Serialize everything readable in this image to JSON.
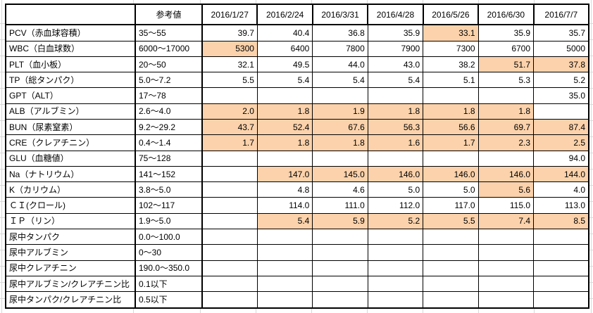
{
  "sheet": {
    "header": {
      "corner": "",
      "reference": "参考値",
      "dates": [
        "2016/1/27",
        "2016/2/24",
        "2016/3/31",
        "2016/4/28",
        "2016/5/26",
        "2016/6/30",
        "2016/7/7"
      ]
    },
    "rows": [
      {
        "label": "PCV（赤血球容積）",
        "ref": "35〜55",
        "values": [
          "39.7",
          "40.4",
          "36.8",
          "35.9",
          "33.1",
          "35.9",
          "35.7"
        ],
        "highlight": [
          0,
          0,
          0,
          0,
          1,
          0,
          0
        ]
      },
      {
        "label": "WBC（白血球数）",
        "ref": "6000〜17000",
        "values": [
          "5300",
          "6400",
          "7800",
          "7900",
          "7300",
          "6700",
          "5000"
        ],
        "highlight": [
          1,
          0,
          0,
          0,
          0,
          0,
          0
        ]
      },
      {
        "label": "PLT（血小板）",
        "ref": "20〜50",
        "values": [
          "32.1",
          "49.5",
          "44.0",
          "43.0",
          "38.2",
          "51.7",
          "37.8"
        ],
        "highlight": [
          0,
          0,
          0,
          0,
          0,
          1,
          1
        ]
      },
      {
        "label": "TP（総タンパク）",
        "ref": "5.0〜7.2",
        "values": [
          "5.5",
          "5.4",
          "5.4",
          "5.4",
          "5.1",
          "5.3",
          "5.2"
        ],
        "highlight": [
          0,
          0,
          0,
          0,
          0,
          0,
          0
        ]
      },
      {
        "label": "GPT（ALT）",
        "ref": "17〜78",
        "values": [
          "",
          "",
          "",
          "",
          "",
          "",
          "35.0"
        ],
        "highlight": [
          0,
          0,
          0,
          0,
          0,
          0,
          0
        ]
      },
      {
        "label": "ALB（アルブミン）",
        "ref": "2.6〜4.0",
        "values": [
          "2.0",
          "1.8",
          "1.9",
          "1.8",
          "1.8",
          "1.8",
          ""
        ],
        "highlight": [
          1,
          1,
          1,
          1,
          1,
          1,
          0
        ]
      },
      {
        "label": "BUN（尿素窒素）",
        "ref": "9.2〜29.2",
        "values": [
          "43.7",
          "52.4",
          "67.6",
          "56.3",
          "56.6",
          "69.7",
          "87.4"
        ],
        "highlight": [
          1,
          1,
          1,
          1,
          1,
          1,
          1
        ]
      },
      {
        "label": "CRE（クレアチニン）",
        "ref": "0.4〜1.4",
        "values": [
          "1.7",
          "1.8",
          "1.8",
          "1.6",
          "1.7",
          "2.3",
          "2.5"
        ],
        "highlight": [
          1,
          1,
          1,
          1,
          1,
          1,
          1
        ]
      },
      {
        "label": "GLU（血糖値）",
        "ref": "75〜128",
        "values": [
          "",
          "",
          "",
          "",
          "",
          "",
          "94.0"
        ],
        "highlight": [
          0,
          0,
          0,
          0,
          0,
          0,
          0
        ]
      },
      {
        "label": "Na（ナトリウム）",
        "ref": "141〜152",
        "values": [
          "",
          "147.0",
          "145.0",
          "146.0",
          "146.0",
          "146.0",
          "144.0"
        ],
        "highlight": [
          0,
          1,
          1,
          1,
          1,
          1,
          1
        ]
      },
      {
        "label": "K（カリウム）",
        "ref": "3.8〜5.0",
        "values": [
          "",
          "4.8",
          "4.6",
          "5.0",
          "5.0",
          "5.6",
          "4.0"
        ],
        "highlight": [
          0,
          0,
          0,
          0,
          0,
          1,
          0
        ]
      },
      {
        "label": "ＣＩ(クロール)",
        "ref": "102〜117",
        "values": [
          "",
          "114.0",
          "111.0",
          "112.0",
          "117.0",
          "115.0",
          "113.0"
        ],
        "highlight": [
          0,
          0,
          0,
          0,
          0,
          0,
          0
        ]
      },
      {
        "label": "ＩＰ（リン）",
        "ref": "1.9〜5.0",
        "values": [
          "",
          "5.4",
          "5.9",
          "5.2",
          "5.5",
          "7.4",
          "8.5"
        ],
        "highlight": [
          0,
          1,
          1,
          1,
          1,
          1,
          1
        ]
      },
      {
        "label": "尿中タンパク",
        "ref": "0.0〜100.0",
        "values": [
          "",
          "",
          "",
          "",
          "",
          "",
          ""
        ],
        "highlight": [
          0,
          0,
          0,
          0,
          0,
          0,
          0
        ]
      },
      {
        "label": "尿中アルブミン",
        "ref": "0〜30",
        "values": [
          "",
          "",
          "",
          "",
          "",
          "",
          ""
        ],
        "highlight": [
          0,
          0,
          0,
          0,
          0,
          0,
          0
        ]
      },
      {
        "label": "尿中クレアチニン",
        "ref": "190.0〜350.0",
        "values": [
          "",
          "",
          "",
          "",
          "",
          "",
          ""
        ],
        "highlight": [
          0,
          0,
          0,
          0,
          0,
          0,
          0
        ]
      },
      {
        "label": "尿中アルブミン/クレアチニン比",
        "ref": "0.1以下",
        "values": [
          "",
          "",
          "",
          "",
          "",
          "",
          ""
        ],
        "highlight": [
          0,
          0,
          0,
          0,
          0,
          0,
          0
        ]
      },
      {
        "label": "尿中タンパク/クレアチニン比",
        "ref": "0.5以下",
        "values": [
          "",
          "",
          "",
          "",
          "",
          "",
          ""
        ],
        "highlight": [
          0,
          0,
          0,
          0,
          0,
          0,
          0
        ]
      }
    ],
    "colors": {
      "highlight_fill": "#FBD2AB",
      "table_border": "#000000",
      "sheet_gridline": "#D8D8D8"
    }
  }
}
